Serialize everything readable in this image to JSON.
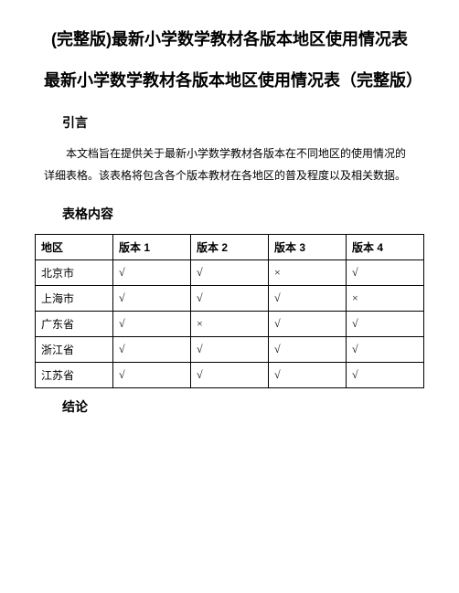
{
  "title_main": "(完整版)最新小学数学教材各版本地区使用情况表",
  "title_sub": "最新小学数学教材各版本地区使用情况表（完整版）",
  "section_intro_heading": "引言",
  "intro_text": "本文档旨在提供关于最新小学数学教材各版本在不同地区的使用情况的详细表格。该表格将包含各个版本教材在各地区的普及程度以及相关数据。",
  "section_table_heading": "表格内容",
  "section_conclusion_heading": "结论",
  "table": {
    "columns": [
      "地区",
      "版本 1",
      "版本 2",
      "版本 3",
      "版本 4"
    ],
    "rows": [
      [
        "北京市",
        "√",
        "√",
        "×",
        "√"
      ],
      [
        "上海市",
        "√",
        "√",
        "√",
        "×"
      ],
      [
        "广东省",
        "√",
        "×",
        "√",
        "√"
      ],
      [
        "浙江省",
        "√",
        "√",
        "√",
        "√"
      ],
      [
        "江苏省",
        "√",
        "√",
        "√",
        "√"
      ]
    ],
    "border_color": "#000000",
    "header_fontweight": "bold",
    "cell_fontsize": 12
  },
  "styles": {
    "background_color": "#ffffff",
    "text_color": "#000000",
    "title_fontsize": 18,
    "heading_fontsize": 14,
    "body_fontsize": 12
  }
}
